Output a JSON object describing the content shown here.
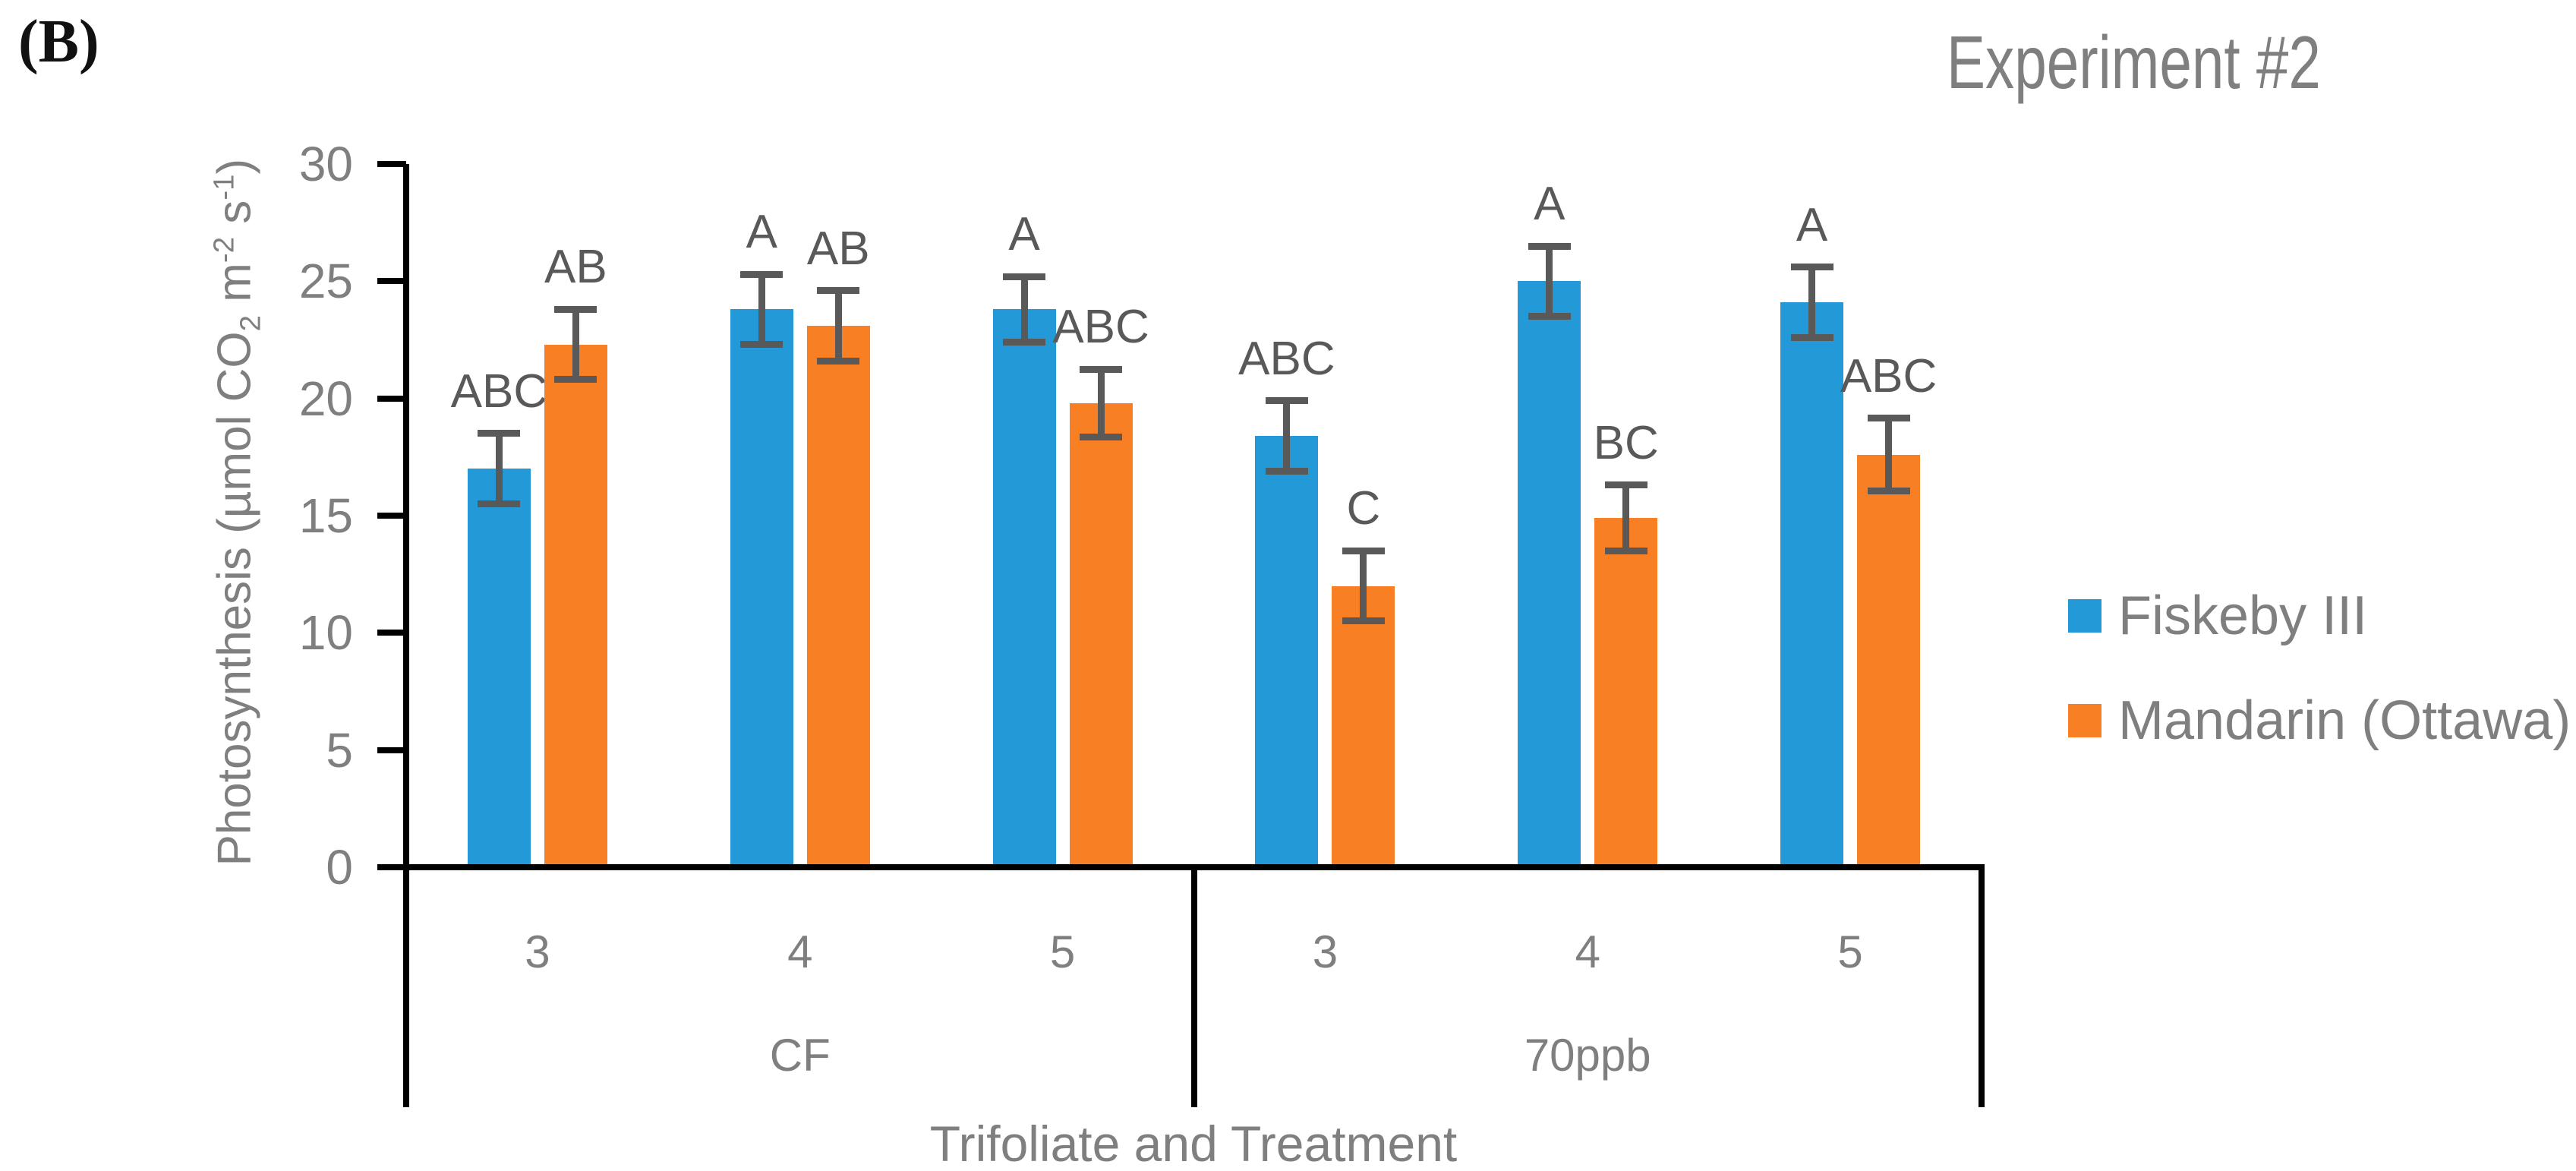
{
  "panel_label": "(B)",
  "title": "Experiment #2",
  "legend": [
    {
      "label": "Fiskeby III",
      "color": "#2499D8"
    },
    {
      "label": "Mandarin (Ottawa)",
      "color": "#F87F23"
    }
  ],
  "chart_data": {
    "type": "bar",
    "title": "Experiment #2",
    "xlabel": "Trifoliate and Treatment",
    "ylabel": "Photosynthesis (µmol CO2 m-2 s-1)",
    "ylabel_parts": [
      [
        "t",
        "Photosynthesis (µmol CO"
      ],
      [
        "sub",
        "2"
      ],
      [
        "t",
        " m"
      ],
      [
        "sup",
        "-2"
      ],
      [
        "t",
        " s"
      ],
      [
        "sup",
        "-1"
      ],
      [
        "t",
        ")"
      ]
    ],
    "ylim": [
      0,
      30
    ],
    "yticks": [
      0,
      5,
      10,
      15,
      20,
      25,
      30
    ],
    "grid": false,
    "legend_position": "right",
    "group_labels": [
      "CF",
      "70ppb"
    ],
    "categories": [
      "3",
      "4",
      "5",
      "3",
      "4",
      "5"
    ],
    "series": [
      {
        "name": "Fiskeby III",
        "color": "#2499D8",
        "values": [
          17.0,
          23.8,
          23.8,
          18.4,
          25.0,
          24.1
        ],
        "errors": [
          1.5,
          1.5,
          1.4,
          1.5,
          1.5,
          1.5
        ],
        "sig_labels": [
          "ABC",
          "A",
          "A",
          "ABC",
          "A",
          "A"
        ]
      },
      {
        "name": "Mandarin (Ottawa)",
        "color": "#F87F23",
        "values": [
          22.3,
          23.1,
          19.8,
          12.0,
          14.9,
          17.6
        ],
        "errors": [
          1.5,
          1.5,
          1.45,
          1.5,
          1.4,
          1.55
        ],
        "sig_labels": [
          "AB",
          "AB",
          "ABC",
          "C",
          "BC",
          "ABC"
        ]
      }
    ],
    "error_bar_color": "#595959",
    "sig_label_color": "#595959",
    "axis_text_color": "#7f7f7f",
    "axis_line_color": "#000000"
  }
}
